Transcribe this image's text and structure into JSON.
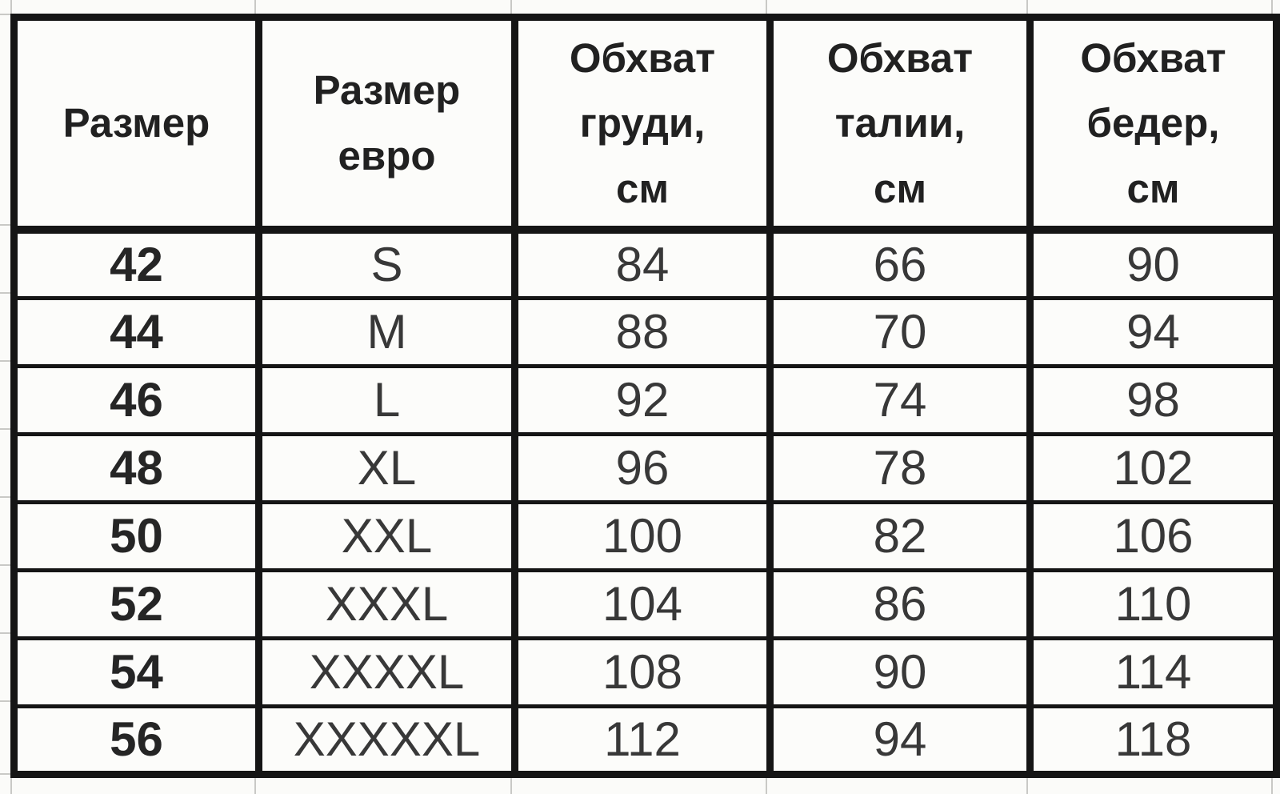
{
  "colors": {
    "background": "#fbfbf9",
    "table_border": "#151515",
    "header_text": "#212121",
    "cell_text": "#383838",
    "faint_gridline": "#c9c9c6"
  },
  "table": {
    "columns": [
      {
        "key": "size-ru",
        "label": "Размер",
        "label_lines": [
          "Размер"
        ]
      },
      {
        "key": "size-euro",
        "label": "Размер евро",
        "label_lines": [
          "Размер",
          "евро"
        ]
      },
      {
        "key": "chest",
        "label": "Обхват груди, см",
        "label_lines": [
          "Обхват",
          "груди,",
          "см"
        ]
      },
      {
        "key": "waist",
        "label": "Обхват талии, см",
        "label_lines": [
          "Обхват",
          "талии,",
          "см"
        ]
      },
      {
        "key": "hips",
        "label": "Обхват бедер, см",
        "label_lines": [
          "Обхват",
          "бедер,",
          "см"
        ]
      }
    ],
    "rows": [
      [
        "42",
        "S",
        "84",
        "66",
        "90"
      ],
      [
        "44",
        "M",
        "88",
        "70",
        "94"
      ],
      [
        "46",
        "L",
        "92",
        "74",
        "98"
      ],
      [
        "48",
        "XL",
        "96",
        "78",
        "102"
      ],
      [
        "50",
        "XXL",
        "100",
        "82",
        "106"
      ],
      [
        "52",
        "XXXL",
        "104",
        "86",
        "110"
      ],
      [
        "54",
        "XXXXL",
        "108",
        "90",
        "114"
      ],
      [
        "56",
        "XXXXXL",
        "112",
        "94",
        "118"
      ]
    ]
  },
  "chart_data": {
    "type": "table",
    "columns": [
      "Размер",
      "Размер евро",
      "Обхват груди, см",
      "Обхват талии, см",
      "Обхват бедер, см"
    ],
    "rows": [
      [
        42,
        "S",
        84,
        66,
        90
      ],
      [
        44,
        "M",
        88,
        70,
        94
      ],
      [
        46,
        "L",
        92,
        74,
        98
      ],
      [
        48,
        "XL",
        96,
        78,
        102
      ],
      [
        50,
        "XXL",
        100,
        82,
        106
      ],
      [
        52,
        "XXXL",
        104,
        86,
        110
      ],
      [
        54,
        "XXXXL",
        108,
        90,
        114
      ],
      [
        56,
        "XXXXXL",
        112,
        94,
        118
      ]
    ]
  }
}
